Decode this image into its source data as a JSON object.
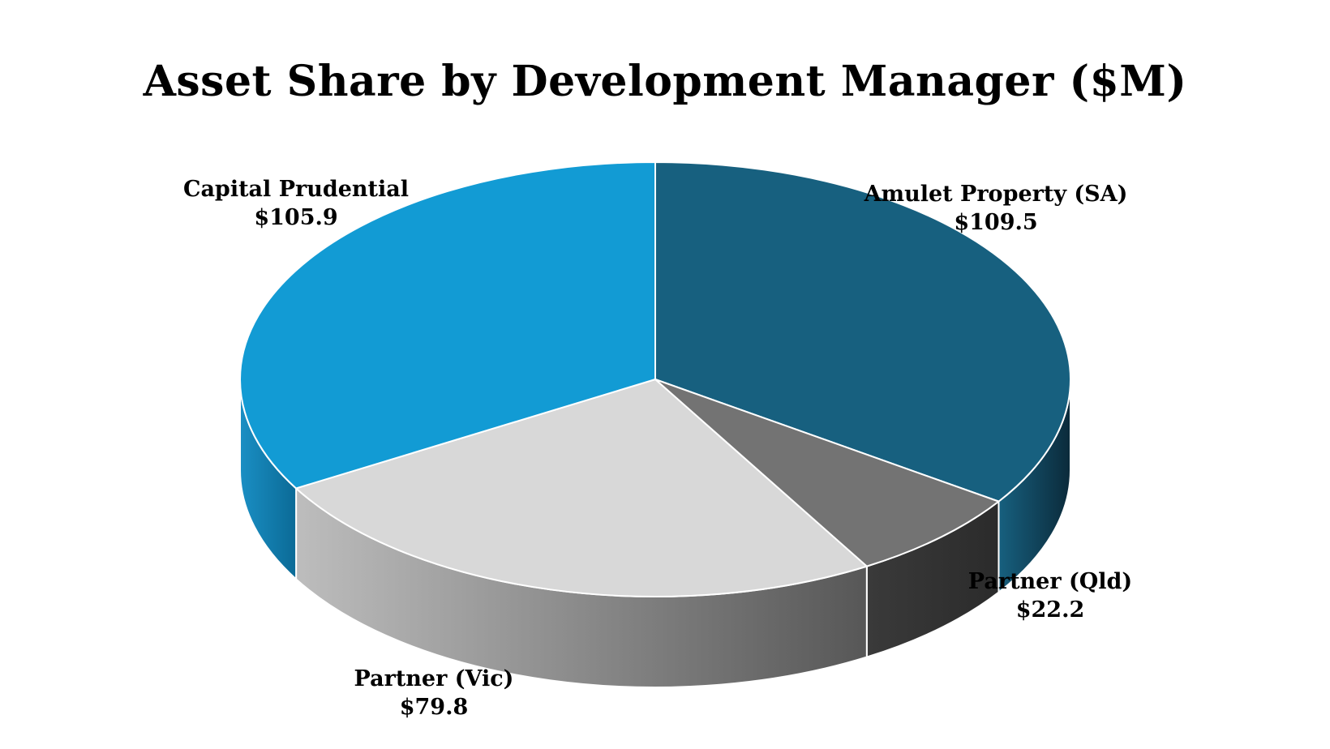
{
  "chart_data": {
    "type": "pie",
    "style": "3d",
    "title": "Asset Share by Development Manager ($M)",
    "unit": "$M",
    "slices": [
      {
        "name": "Amulet Property (SA)",
        "value": 109.5,
        "value_label": "$109.5",
        "color": "#17607f",
        "side_dark": "#0b2a3a",
        "side_light": "#17607f"
      },
      {
        "name": "Partner (Qld)",
        "value": 22.2,
        "value_label": "$22.2",
        "color": "#737373",
        "side_dark": "#2b2b2b",
        "side_light": "#3a3a3a"
      },
      {
        "name": "Partner (Vic)",
        "value": 79.8,
        "value_label": "$79.8",
        "color": "#d8d8d8",
        "side_dark": "#575757",
        "side_light": "#bdbdbd"
      },
      {
        "name": "Capital Prudential",
        "value": 105.9,
        "value_label": "$105.9",
        "color": "#129bd4",
        "side_dark": "#0b6a96",
        "side_light": "#1a8fc4"
      }
    ]
  }
}
